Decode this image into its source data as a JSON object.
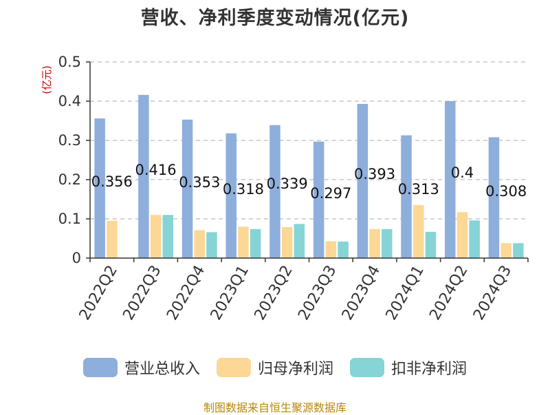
{
  "title": "营收、净利季度变动情况(亿元)",
  "source": "制图数据来自恒生聚源数据库",
  "colors": {
    "axis": "#333333",
    "grid": "#bbbbbb",
    "unit": "#cc0000"
  },
  "chart_data": {
    "type": "bar",
    "title": "营收、净利季度变动情况(亿元)",
    "ylabel": "(亿元)",
    "ylim": [
      0,
      0.5
    ],
    "yticks": [
      0,
      0.1,
      0.2,
      0.3,
      0.4,
      0.5
    ],
    "ytick_labels": [
      "0",
      "0.1",
      "0.2",
      "0.3",
      "0.4",
      "0.5"
    ],
    "grid": "horizontal-dashed",
    "legend_position": "bottom",
    "categories": [
      "2022Q2",
      "2022Q3",
      "2022Q4",
      "2023Q1",
      "2023Q2",
      "2023Q3",
      "2023Q4",
      "2024Q1",
      "2024Q2",
      "2024Q3"
    ],
    "series": [
      {
        "name": "营业总收入",
        "color": "#8eaedc",
        "values": [
          0.356,
          0.416,
          0.353,
          0.318,
          0.339,
          0.297,
          0.393,
          0.313,
          0.4,
          0.308
        ]
      },
      {
        "name": "归母净利润",
        "color": "#fdd796",
        "values": [
          0.095,
          0.11,
          0.071,
          0.08,
          0.079,
          0.043,
          0.074,
          0.135,
          0.117,
          0.038
        ]
      },
      {
        "name": "扣非净利润",
        "color": "#86d4d6",
        "values": [
          null,
          0.11,
          0.066,
          0.074,
          0.087,
          0.042,
          0.074,
          0.067,
          0.096,
          0.038
        ]
      }
    ],
    "data_labels": [
      "0.356",
      "0.416",
      "0.353",
      "0.318",
      "0.339",
      "0.297",
      "0.393",
      "0.313",
      "0.4",
      "0.308"
    ]
  }
}
